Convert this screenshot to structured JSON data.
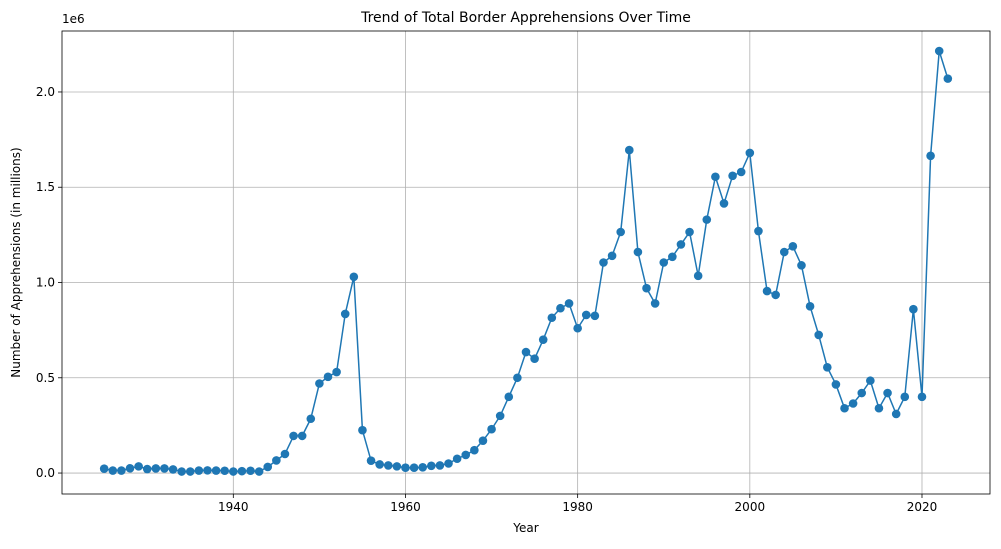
{
  "chart_data": {
    "type": "line",
    "title": "Trend of Total Border Apprehensions Over Time",
    "xlabel": "Year",
    "ylabel": "Number of Apprehensions (in millions)",
    "y_offset_label": "1e6",
    "xlim": [
      1920.1,
      2027.9
    ],
    "ylim": [
      -0.11,
      2.32
    ],
    "x_ticks": [
      1940,
      1960,
      1980,
      2000,
      2020
    ],
    "x_tick_labels": [
      "1940",
      "1960",
      "1980",
      "2000",
      "2020"
    ],
    "y_ticks": [
      0.0,
      0.5,
      1.0,
      1.5,
      2.0
    ],
    "y_tick_labels": [
      "0.0",
      "0.5",
      "1.0",
      "1.5",
      "2.0"
    ],
    "grid": true,
    "line_color": "#1f77b4",
    "marker": "circle",
    "series": [
      {
        "x": [
          1925,
          1926,
          1927,
          1928,
          1929,
          1930,
          1931,
          1932,
          1933,
          1934,
          1935,
          1936,
          1937,
          1938,
          1939,
          1940,
          1941,
          1942,
          1943,
          1944,
          1945,
          1946,
          1947,
          1948,
          1949,
          1950,
          1951,
          1952,
          1953,
          1954,
          1955,
          1956,
          1957,
          1958,
          1959,
          1960,
          1961,
          1962,
          1963,
          1964,
          1965,
          1966,
          1967,
          1968,
          1969,
          1970,
          1971,
          1972,
          1973,
          1974,
          1975,
          1976,
          1977,
          1978,
          1979,
          1980,
          1981,
          1982,
          1983,
          1984,
          1985,
          1986,
          1987,
          1988,
          1989,
          1990,
          1991,
          1992,
          1993,
          1994,
          1995,
          1996,
          1997,
          1998,
          1999,
          2000,
          2001,
          2002,
          2003,
          2004,
          2005,
          2006,
          2007,
          2008,
          2009,
          2010,
          2011,
          2012,
          2013,
          2014,
          2015,
          2016,
          2017,
          2018,
          2019,
          2020,
          2021,
          2022,
          2023
        ],
        "values": [
          0.023,
          0.013,
          0.013,
          0.025,
          0.035,
          0.021,
          0.024,
          0.024,
          0.019,
          0.008,
          0.008,
          0.013,
          0.014,
          0.013,
          0.012,
          0.008,
          0.01,
          0.012,
          0.008,
          0.032,
          0.066,
          0.1,
          0.195,
          0.195,
          0.285,
          0.47,
          0.505,
          0.53,
          0.835,
          1.03,
          0.225,
          0.065,
          0.045,
          0.04,
          0.035,
          0.028,
          0.028,
          0.03,
          0.038,
          0.04,
          0.05,
          0.075,
          0.095,
          0.12,
          0.17,
          0.23,
          0.3,
          0.4,
          0.5,
          0.635,
          0.6,
          0.7,
          0.815,
          0.865,
          0.89,
          0.76,
          0.83,
          0.825,
          1.105,
          1.14,
          1.265,
          1.695,
          1.16,
          0.97,
          0.89,
          1.105,
          1.135,
          1.2,
          1.265,
          1.035,
          1.33,
          1.555,
          1.415,
          1.56,
          1.58,
          1.68,
          1.27,
          0.955,
          0.935,
          1.16,
          1.19,
          1.09,
          0.875,
          0.725,
          0.555,
          0.465,
          0.34,
          0.365,
          0.42,
          0.485,
          0.34,
          0.42,
          0.31,
          0.4,
          0.86,
          0.4,
          1.665,
          2.215,
          2.07
        ]
      }
    ]
  }
}
